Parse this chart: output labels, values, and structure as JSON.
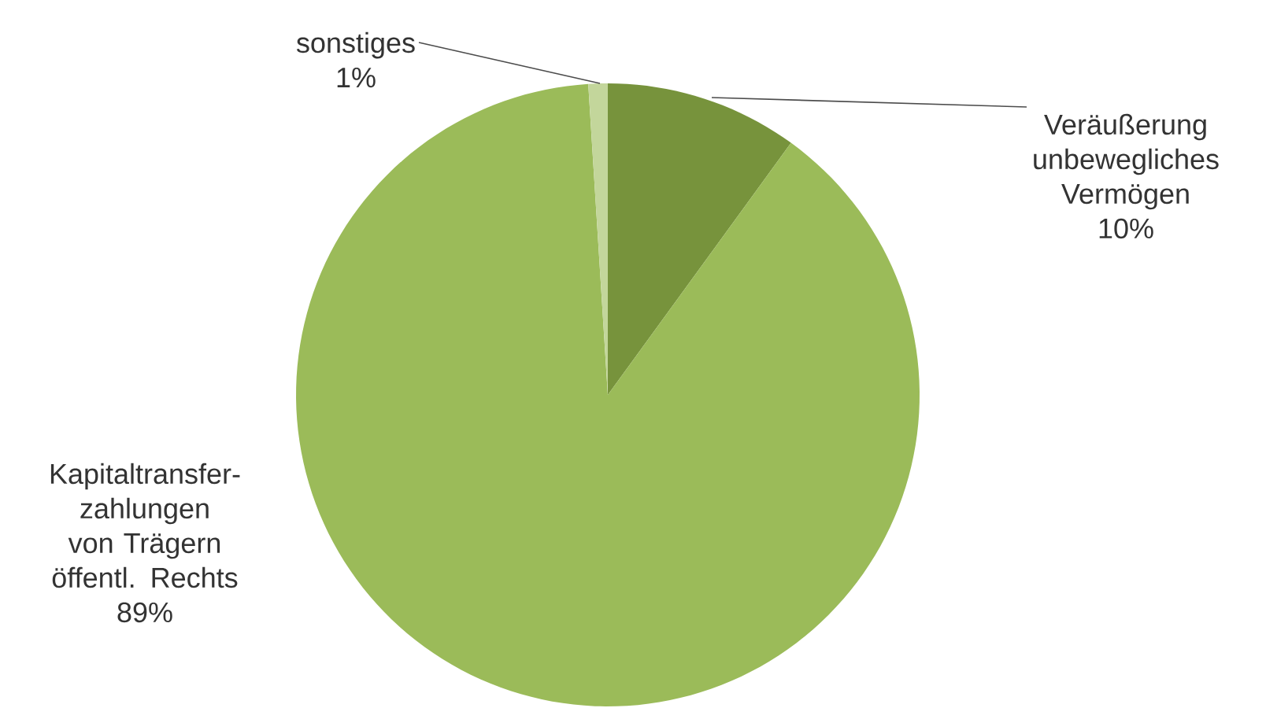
{
  "chart_data": {
    "type": "pie",
    "categories": [
      "Veräußerung unbewegliches Vermögen",
      "Kapitaltransfer-zahlungen von Trägern öffentl. Rechts",
      "sonstiges"
    ],
    "values": [
      10,
      89,
      1
    ],
    "value_labels": [
      "10%",
      "89%",
      "1%"
    ],
    "colors": [
      "#77933c",
      "#9bbb59",
      "#c3d69b"
    ]
  }
}
